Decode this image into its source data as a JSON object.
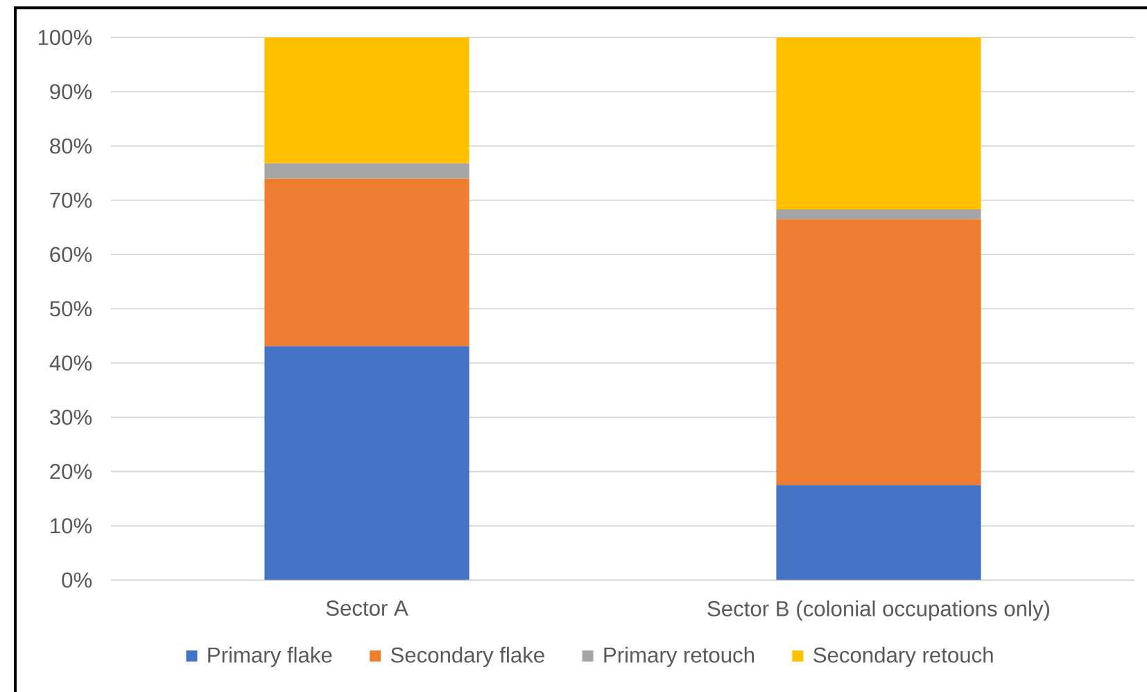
{
  "chart_data": {
    "type": "bar",
    "stacked": true,
    "categories": [
      "Sector A",
      "Sector B (colonial occupations only)"
    ],
    "series": [
      {
        "name": "Primary flake",
        "color": "#4472c4",
        "values": [
          43.1,
          17.5
        ]
      },
      {
        "name": "Secondary flake",
        "color": "#ed7d31",
        "values": [
          30.9,
          49.0
        ]
      },
      {
        "name": "Primary retouch",
        "color": "#a5a5a5",
        "values": [
          2.8,
          1.8
        ]
      },
      {
        "name": "Secondary retouch",
        "color": "#ffc000",
        "values": [
          23.2,
          31.7
        ]
      }
    ],
    "ylim": [
      0,
      100
    ],
    "yticks": [
      {
        "value": 0,
        "label": "0%"
      },
      {
        "value": 10,
        "label": "10%"
      },
      {
        "value": 20,
        "label": "20%"
      },
      {
        "value": 30,
        "label": "30%"
      },
      {
        "value": 40,
        "label": "40%"
      },
      {
        "value": 50,
        "label": "50%"
      },
      {
        "value": 60,
        "label": "60%"
      },
      {
        "value": 70,
        "label": "70%"
      },
      {
        "value": 80,
        "label": "80%"
      },
      {
        "value": 90,
        "label": "90%"
      },
      {
        "value": 100,
        "label": "100%"
      }
    ],
    "grid": "y",
    "legend": "bottom"
  }
}
